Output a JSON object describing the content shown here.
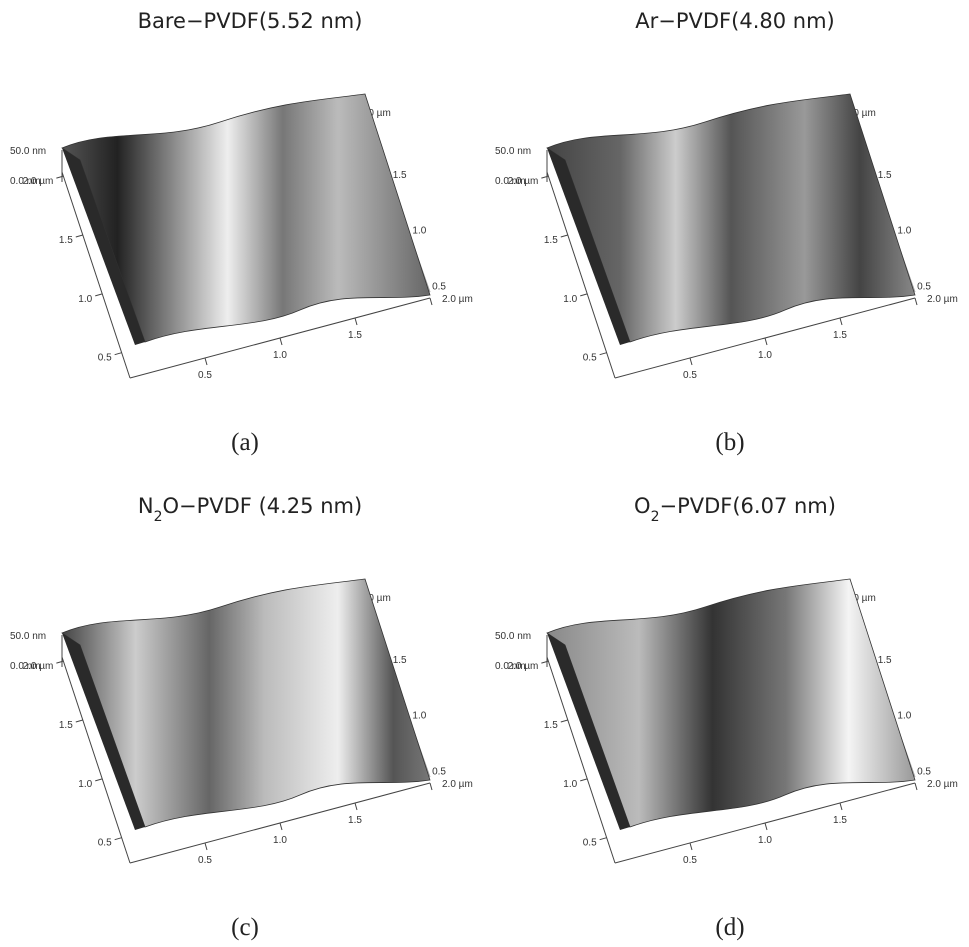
{
  "axes": {
    "z_ticks": [
      "50.0 nm",
      "0.0 nm"
    ],
    "left_ticks": [
      "2.0 µm",
      "1.5",
      "1.0",
      "0.5"
    ],
    "bottom_ticks": [
      "0.5",
      "1.0",
      "1.5",
      "2.0 µm"
    ],
    "right_ticks": [
      "2.0 µm",
      "1.5",
      "1.0",
      "0.5"
    ]
  },
  "panels": [
    {
      "title": [
        {
          "text": "Bare−PVDF(5.52 nm)"
        }
      ],
      "label": "(a)"
    },
    {
      "title": [
        {
          "text": "Ar−PVDF(4.80 nm)"
        }
      ],
      "label": "(b)"
    },
    {
      "title": [
        {
          "text": "N"
        },
        {
          "text": "2",
          "sub": true
        },
        {
          "text": "O−PVDF (4.25 nm)"
        }
      ],
      "label": "(c)"
    },
    {
      "title": [
        {
          "text": "O"
        },
        {
          "text": "2",
          "sub": true
        },
        {
          "text": "−PVDF(6.07 nm)"
        }
      ],
      "label": "(d)"
    }
  ]
}
